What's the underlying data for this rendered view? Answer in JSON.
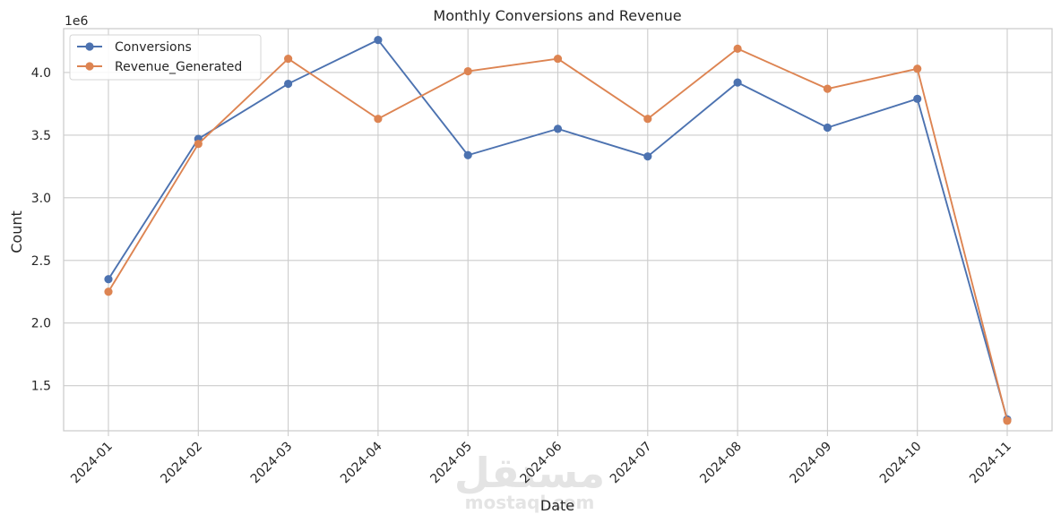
{
  "chart_data": {
    "type": "line",
    "title": "Monthly Conversions and Revenue",
    "xlabel": "Date",
    "ylabel": "Count",
    "y_offset_label": "1e6",
    "categories": [
      "2024-01",
      "2024-02",
      "2024-03",
      "2024-04",
      "2024-05",
      "2024-06",
      "2024-07",
      "2024-08",
      "2024-09",
      "2024-10",
      "2024-11"
    ],
    "y_ticks": [
      1.5,
      2.0,
      2.5,
      3.0,
      3.5,
      4.0
    ],
    "y_tick_labels": [
      "1.5",
      "2.0",
      "2.5",
      "3.0",
      "3.5",
      "4.0"
    ],
    "ylim": [
      1.14,
      4.35
    ],
    "grid": true,
    "legend_position": "upper left",
    "series": [
      {
        "name": "Conversions",
        "color": "#4c72b0",
        "values": [
          2.35,
          3.47,
          3.91,
          4.26,
          3.34,
          3.55,
          3.33,
          3.92,
          3.56,
          3.79,
          1.23
        ]
      },
      {
        "name": "Revenue_Generated",
        "color": "#dd8452",
        "values": [
          2.25,
          3.43,
          4.11,
          3.63,
          4.01,
          4.11,
          3.63,
          4.19,
          3.87,
          4.03,
          1.22
        ]
      }
    ]
  },
  "watermark": {
    "arabic": "مستقل",
    "latin": "mostaql.com"
  }
}
